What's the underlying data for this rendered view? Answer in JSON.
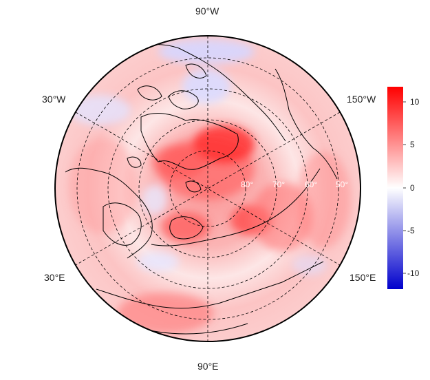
{
  "map": {
    "projection": "north-polar-stereographic",
    "longitude_labels": [
      {
        "text": "90°W"
      },
      {
        "text": "30°W"
      },
      {
        "text": "150°W"
      },
      {
        "text": "30°E"
      },
      {
        "text": "150°E"
      },
      {
        "text": "90°E"
      }
    ],
    "latitude_labels": [
      "80°",
      "70°",
      "60°",
      "50°"
    ]
  },
  "colorbar": {
    "ticks": [
      "10",
      "5",
      "0",
      "-5",
      "-10"
    ],
    "min": -12,
    "max": 12,
    "colors": {
      "low": "#0000cc",
      "mid": "#ffffff",
      "high": "#ff0000"
    }
  }
}
